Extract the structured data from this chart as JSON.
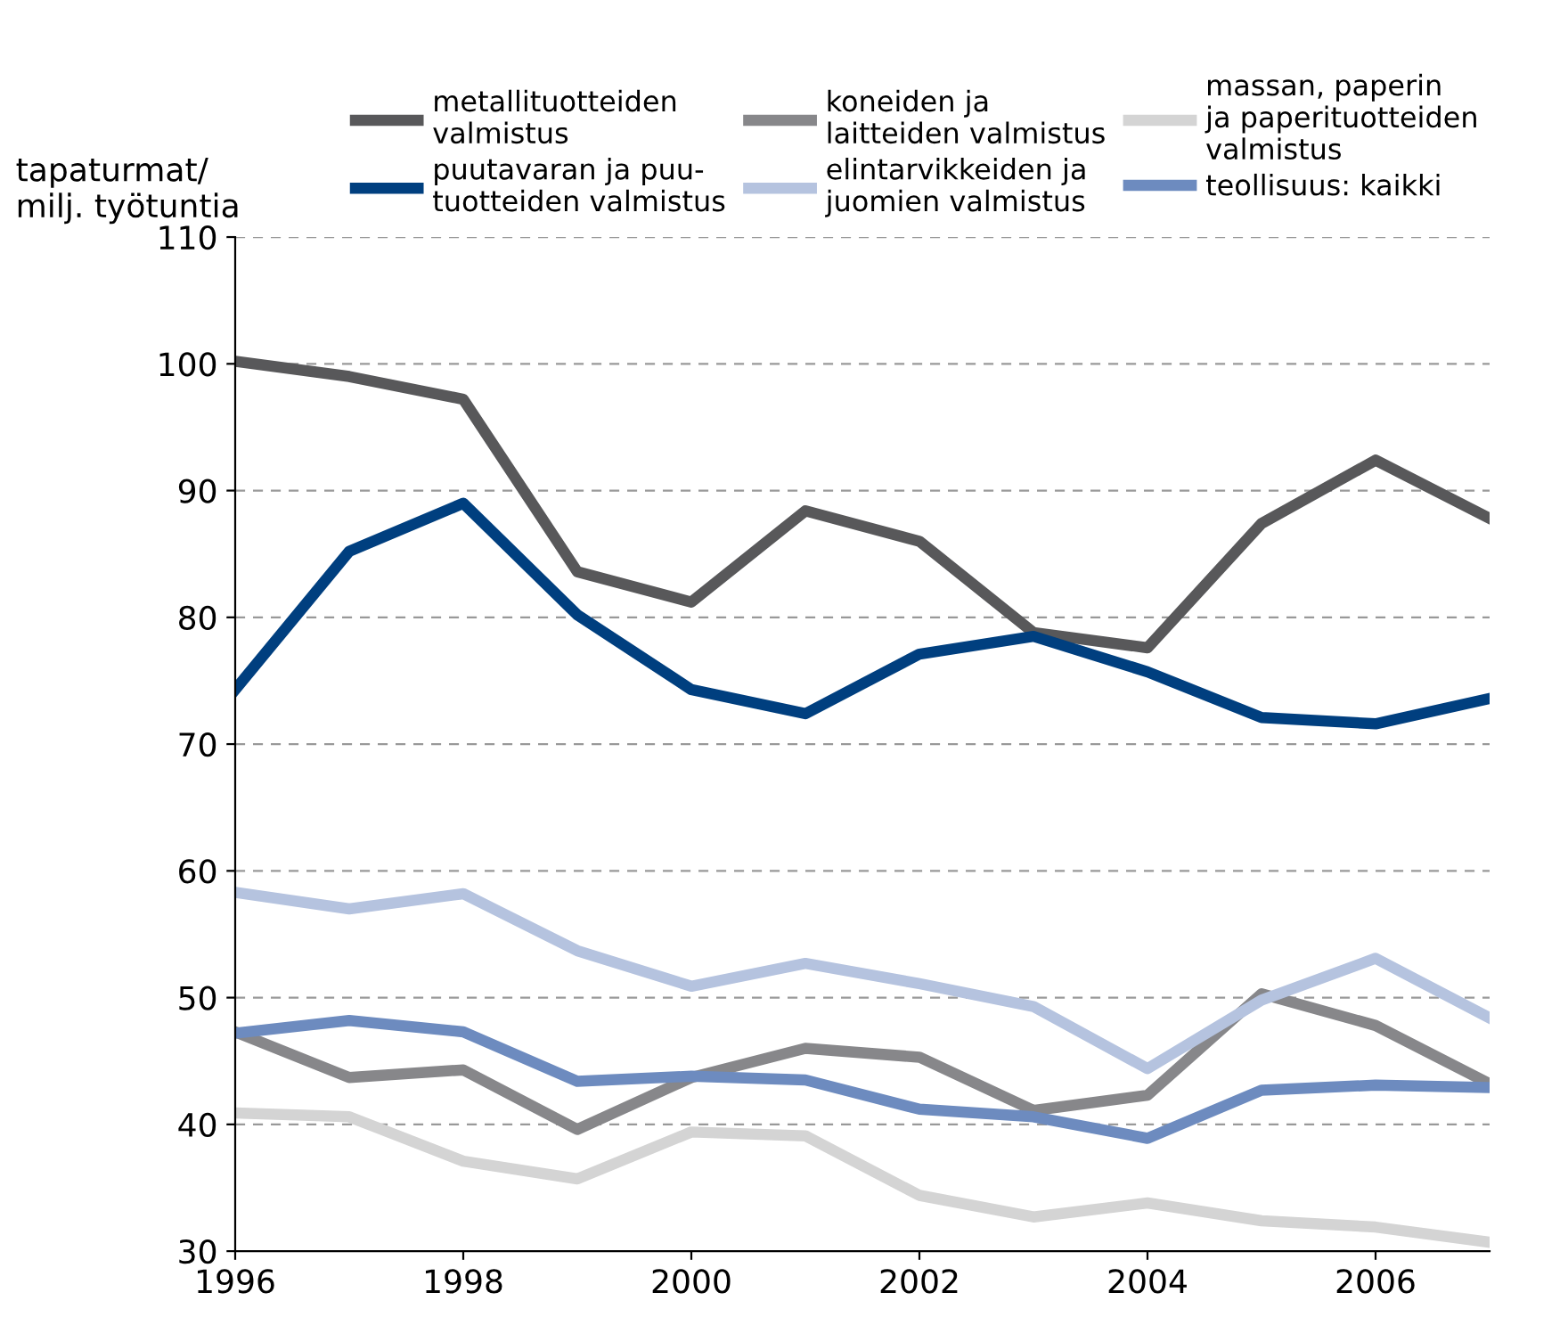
{
  "chart_data": {
    "type": "line",
    "ylabel": "tapaturmat/\nmilj. työtuntia",
    "x": [
      1996,
      1997,
      1998,
      1999,
      2000,
      2001,
      2002,
      2003,
      2004,
      2005,
      2006,
      2007
    ],
    "series": [
      {
        "name": "metallituotteiden\nvalmistus",
        "color": "#58585a",
        "values": [
          100.2,
          99,
          97.2,
          83.6,
          81.2,
          88.4,
          86,
          78.8,
          77.6,
          87.4,
          92.4,
          87.8
        ]
      },
      {
        "name": "puutavaran ja puu-\ntuotteiden valmistus",
        "color": "#003f7f",
        "values": [
          74.3,
          85.2,
          89,
          80.2,
          74.3,
          72.4,
          77.1,
          78.5,
          75.7,
          72.1,
          71.6,
          73.6
        ]
      },
      {
        "name": "koneiden ja\nlaitteiden valmistus",
        "color": "#87878a",
        "values": [
          47.3,
          43.7,
          44.3,
          39.6,
          43.7,
          46,
          45.3,
          41.1,
          42.3,
          50.3,
          47.8,
          43.2
        ]
      },
      {
        "name": "elintarvikkeiden ja\njuomien valmistus",
        "color": "#b5c3df",
        "values": [
          58.3,
          57,
          58.2,
          53.7,
          50.9,
          52.7,
          51.1,
          49.3,
          44.4,
          49.8,
          53.1,
          48.4
        ]
      },
      {
        "name": "massan, paperin\nja paperituotteiden\nvalmistus",
        "color": "#d4d4d4",
        "values": [
          40.9,
          40.6,
          37.1,
          35.7,
          39.4,
          39.1,
          34.4,
          32.7,
          33.8,
          32.4,
          31.9,
          30.7
        ]
      },
      {
        "name": "teollisuus: kaikki",
        "color": "#6d8bbf",
        "values": [
          47.2,
          48.2,
          47.3,
          43.4,
          43.8,
          43.5,
          41.2,
          40.6,
          38.9,
          42.7,
          43.1,
          42.9
        ]
      }
    ],
    "xlim": [
      1996,
      2007
    ],
    "xticks": [
      1996,
      1998,
      2000,
      2002,
      2004,
      2006
    ],
    "ylim": [
      30,
      110
    ],
    "yticks": [
      30,
      40,
      50,
      60,
      70,
      80,
      90,
      100,
      110
    ],
    "grid": "y",
    "legend": "top",
    "marker": "none",
    "line_style": "solid"
  }
}
